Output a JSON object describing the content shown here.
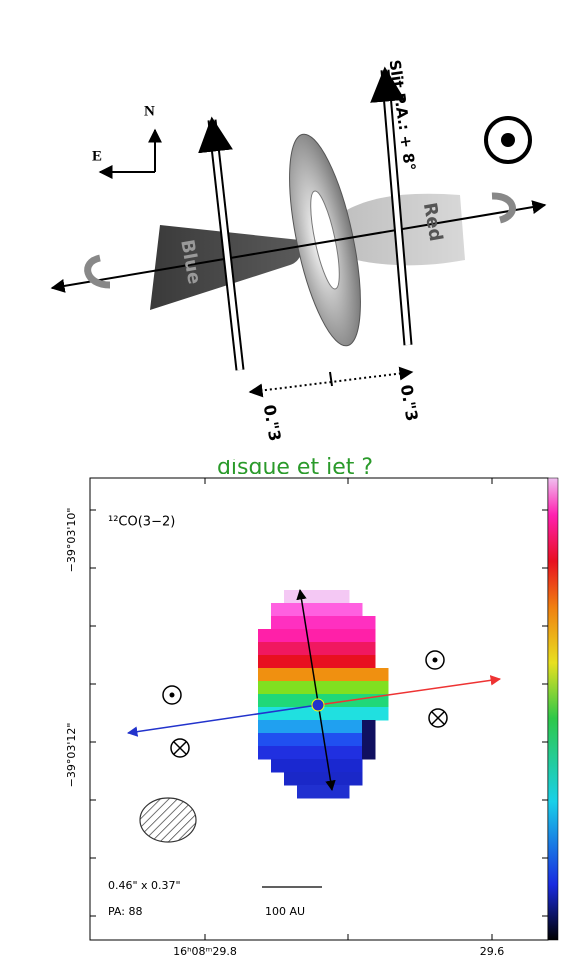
{
  "diagram": {
    "compass": {
      "north": "N",
      "east": "E"
    },
    "slit_label": "Slit P.A.: + 8°",
    "lobes": {
      "blue": "Blue",
      "red": "Red"
    },
    "offsets": [
      "0.\"3",
      "0.\"3"
    ]
  },
  "caption": "disque et jet ?",
  "map": {
    "line_label": "¹²CO(3−2)",
    "y_labels": [
      "−39°03'10\"",
      "−39°03'12\""
    ],
    "x_labels": [
      "16ʰ08ᵐ29.8",
      "29.6"
    ],
    "beam_size": "0.46\" x 0.37\"",
    "beam_pa": "PA: 88",
    "scale_bar": "100 AU"
  }
}
